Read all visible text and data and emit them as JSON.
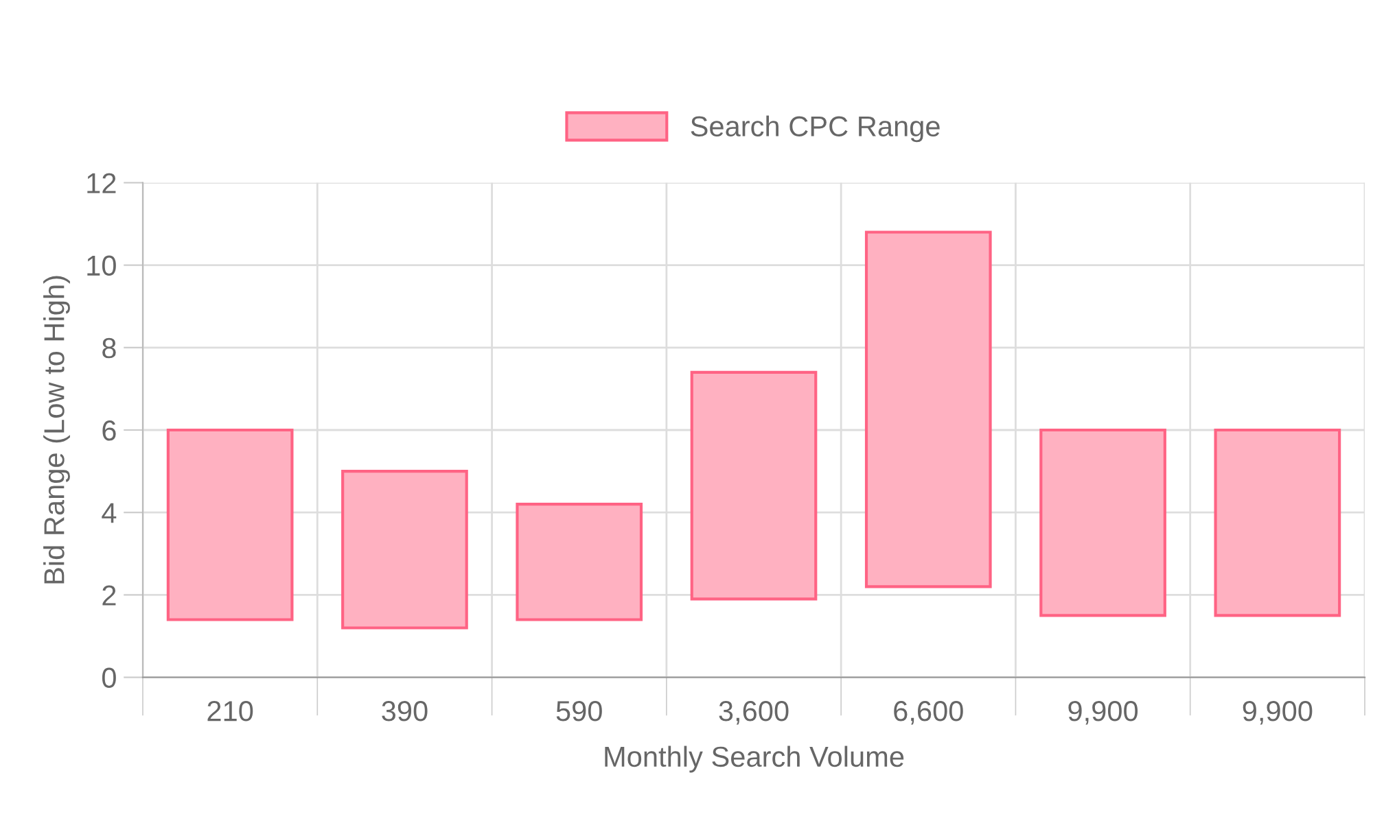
{
  "chart_data": {
    "type": "bar",
    "xlabel": "Monthly Search Volume",
    "ylabel": "Bid Range (Low to High)",
    "categories": [
      "210",
      "390",
      "590",
      "3,600",
      "6,600",
      "9,900",
      "9,900"
    ],
    "series": [
      {
        "name": "Search CPC Range",
        "color": "#ffb1c1",
        "base": [
          1.4,
          1.2,
          1.4,
          1.9,
          2.2,
          1.5,
          1.5
        ],
        "values": [
          4.6,
          3.8,
          2.8,
          5.5,
          8.6,
          4.5,
          4.5
        ]
      }
    ],
    "ylim": [
      0,
      12
    ],
    "yticks": [
      0,
      2,
      4,
      6,
      8,
      10,
      12
    ],
    "grid": true,
    "legend": "top"
  }
}
